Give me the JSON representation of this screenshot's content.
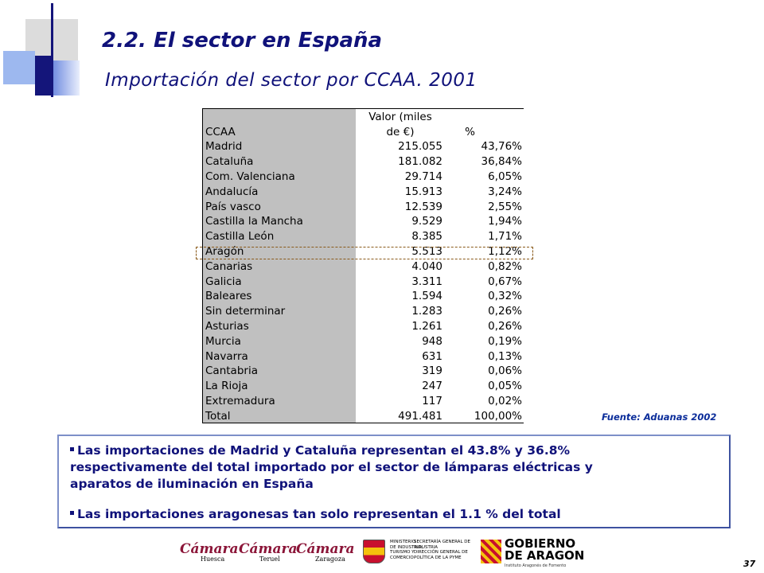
{
  "title": "2.2. El sector en España",
  "subtitle": "Importación del sector por CCAA. 2001",
  "table": {
    "headers": {
      "ccaa": "CCAA",
      "valor_line1": "Valor (miles",
      "valor_line2": "de €)",
      "pct": "%"
    },
    "rows": [
      [
        "Madrid",
        "215.055",
        "43,76%"
      ],
      [
        "Cataluña",
        "181.082",
        "36,84%"
      ],
      [
        "Com. Valenciana",
        "29.714",
        "6,05%"
      ],
      [
        "Andalucía",
        "15.913",
        "3,24%"
      ],
      [
        "País vasco",
        "12.539",
        "2,55%"
      ],
      [
        "Castilla la Mancha",
        "9.529",
        "1,94%"
      ],
      [
        "Castilla León",
        "8.385",
        "1,71%"
      ],
      [
        "Aragón",
        "5.513",
        "1,12%"
      ],
      [
        "Canarias",
        "4.040",
        "0,82%"
      ],
      [
        "Galicia",
        "3.311",
        "0,67%"
      ],
      [
        "Baleares",
        "1.594",
        "0,32%"
      ],
      [
        "Sin determinar",
        "1.283",
        "0,26%"
      ],
      [
        "Asturias",
        "1.261",
        "0,26%"
      ],
      [
        "Murcia",
        "948",
        "0,19%"
      ],
      [
        "Navarra",
        "631",
        "0,13%"
      ],
      [
        "Cantabria",
        "319",
        "0,06%"
      ],
      [
        "La Rioja",
        "247",
        "0,05%"
      ],
      [
        "Extremadura",
        "117",
        "0,02%"
      ],
      [
        "Total",
        "491.481",
        "100,00%"
      ]
    ]
  },
  "source": "Fuente: Aduanas 2002",
  "bullets": {
    "b1": {
      "line1": "Las importaciones de Madrid y Cataluña representan el 43.8% y 36.8%",
      "line2": "respectivamente  del total importado por el sector de lámparas eléctricas y",
      "line3": "aparatos de iluminación en España"
    },
    "b2": "Las importaciones aragonesas tan solo representan el 1.1 % del total"
  },
  "footer": {
    "camara1": "Cámara",
    "camara1_city": "Huesca",
    "camara2": "Cámara",
    "camara2_city": "Teruel",
    "camara3": "Cámara",
    "camara3_city": "Zaragoza",
    "ministerio_line1": "MINISTERIO",
    "ministerio_line2": "DE INDUSTRIA,",
    "ministerio_line3": "TURISMO Y",
    "ministerio_line4": "COMERCIO",
    "secretaria_line1": "SECRETARÍA GENERAL DE",
    "secretaria_line2": "INDUSTRIA",
    "secretaria_line3": "DIRECCIÓN GENERAL DE",
    "secretaria_line4": "POLÍTICA DE LA PYME",
    "gobierno_line1": "GOBIERNO",
    "gobierno_line2": "DE ARAGON",
    "gobierno_sub": "Instituto Aragonés de Fomento",
    "page_number": "37"
  }
}
